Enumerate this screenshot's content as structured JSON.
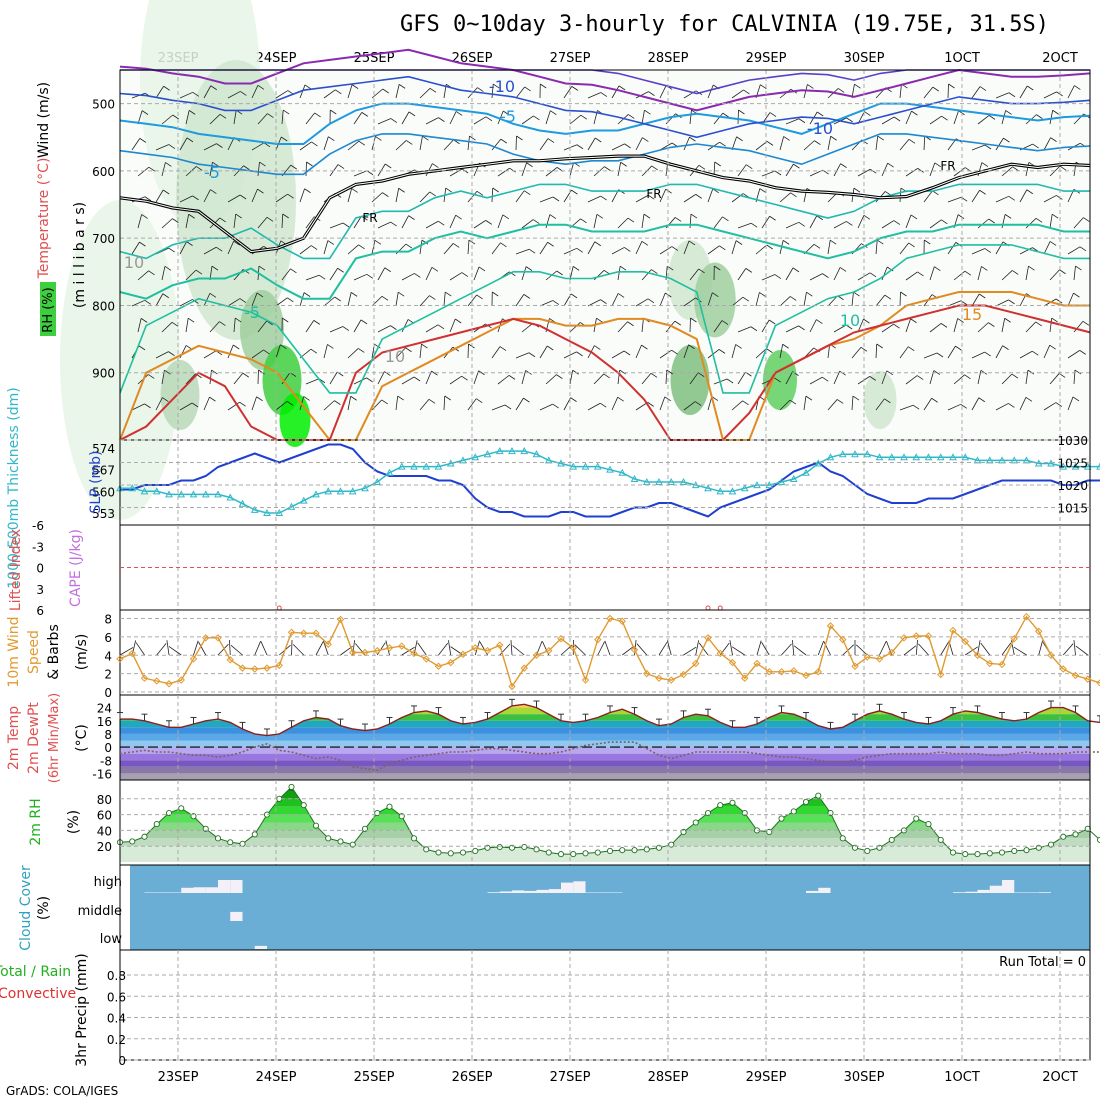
{
  "title": "GFS 0~10day 3-hourly for CALVINIA (19.75E, 31.5S)",
  "credit": "GrADS: COLA/IGES",
  "dates": [
    "23SEP",
    "24SEP",
    "25SEP",
    "26SEP",
    "27SEP",
    "28SEP",
    "29SEP",
    "30SEP",
    "1OCT",
    "2OCT"
  ],
  "colors": {
    "background": "#ffffff",
    "slp": "#1f3fd0",
    "thickness": "#30b8c8",
    "lifted_index": "#e05050",
    "cape": "#c070e0",
    "wind_speed": "#e09a30",
    "dewpoint": "#806060",
    "rh_fill": "#3ecf3e",
    "cloud_bg": "#6aaed6",
    "cloud_fill": "#f4f0f8"
  },
  "panels": {
    "upper": {
      "label_wind": "Wind (m/s)",
      "label_temp": "Temperature (°C)",
      "label_rh": "RH (%)",
      "label_pressure": "(m i l l i b a r s)",
      "ticks": [
        "500",
        "600",
        "700",
        "800",
        "900"
      ],
      "contour_labels": [
        "-10",
        "-5",
        "-10",
        "-5",
        "FR",
        "FR",
        "FR",
        "-5",
        "10",
        "15",
        "10",
        "10"
      ]
    },
    "slp": {
      "label_thick": "1000-500mb Thickness (dm)",
      "label_slp": "SLP (mb)",
      "left_ticks": [
        "574",
        "567",
        "560",
        "553"
      ],
      "right_ticks": [
        "1030",
        "1025",
        "1020",
        "1015"
      ]
    },
    "li": {
      "label_li": "Lifted Index",
      "label_cape": "CAPE (J/kg)",
      "ticks": [
        "-6",
        "-3",
        "0",
        "3",
        "6"
      ]
    },
    "wind": {
      "label_1": "10m Wind",
      "label_2": "Speed",
      "label_3": "& Barbs",
      "label_unit": "(m/s)",
      "ticks": [
        "8",
        "6",
        "4",
        "2",
        "0"
      ]
    },
    "temp": {
      "label_1": "2m Temp",
      "label_2": "2m DewPt",
      "label_3": "(6hr Min/Max)",
      "label_unit": "(°C)",
      "ticks": [
        "24",
        "16",
        "8",
        "0",
        "-8",
        "-16"
      ]
    },
    "rh": {
      "label": "2m RH",
      "label_unit": "(%)",
      "ticks": [
        "80",
        "60",
        "40",
        "20"
      ]
    },
    "cloud": {
      "label": "Cloud Cover",
      "label_unit": "(%)",
      "ticks": [
        "high",
        "middle",
        "low"
      ]
    },
    "precip": {
      "label_left": "Total / Rain",
      "label_conv": "Convective",
      "label_axis": "3hr Precip (mm)",
      "run_total": "Run Total = 0",
      "ticks": [
        "0.8",
        "0.6",
        "0.4",
        "0.2",
        "0"
      ]
    }
  },
  "chart_data": {
    "type": "line",
    "x_start": "2023-09-22T12Z",
    "x_step_hours": 3,
    "slp_mb": [
      1019,
      1019,
      1020,
      1020,
      1020,
      1021,
      1021,
      1022,
      1024,
      1025,
      1026,
      1027,
      1026,
      1025,
      1026,
      1027,
      1028,
      1029,
      1029,
      1028,
      1025,
      1023,
      1022,
      1022,
      1022,
      1022,
      1021,
      1021,
      1020,
      1017,
      1015,
      1014,
      1014,
      1013,
      1013,
      1013,
      1014,
      1014,
      1013,
      1013,
      1013,
      1014,
      1015,
      1015,
      1016,
      1016,
      1015,
      1014,
      1013,
      1015,
      1016,
      1017,
      1018,
      1019,
      1021,
      1023,
      1024,
      1025,
      1023,
      1022,
      1020,
      1018,
      1017,
      1016,
      1016,
      1016,
      1017,
      1017,
      1017,
      1018,
      1019,
      1020,
      1021,
      1021,
      1021,
      1021,
      1021,
      1020,
      1020,
      1021,
      1021
    ],
    "thickness_dm": [
      561,
      561,
      560,
      560,
      559,
      559,
      559,
      559,
      559,
      558,
      556,
      554,
      553,
      553,
      555,
      557,
      559,
      560,
      560,
      560,
      561,
      563,
      566,
      568,
      568,
      568,
      568,
      569,
      570,
      571,
      572,
      573,
      573,
      573,
      572,
      570,
      569,
      568,
      568,
      568,
      567,
      566,
      564,
      563,
      563,
      563,
      563,
      562,
      561,
      560,
      560,
      561,
      562,
      562,
      563,
      564,
      566,
      569,
      571,
      572,
      572,
      572,
      571,
      571,
      571,
      571,
      571,
      571,
      571,
      571,
      570,
      570,
      570,
      570,
      570,
      569,
      569,
      568,
      568,
      568,
      568
    ],
    "lifted_index": [
      null,
      null,
      null,
      null,
      null,
      null,
      null,
      null,
      null,
      null,
      null,
      null,
      null,
      6,
      null,
      null,
      null,
      null,
      null,
      null,
      null,
      null,
      null,
      null,
      null,
      null,
      null,
      null,
      null,
      null,
      null,
      null,
      null,
      null,
      null,
      null,
      null,
      null,
      null,
      null,
      null,
      null,
      null,
      null,
      null,
      null,
      null,
      null,
      6,
      6,
      null,
      null,
      null,
      null,
      null,
      null,
      null,
      null,
      null,
      null,
      null,
      null,
      null,
      null,
      null,
      null,
      null,
      null,
      null,
      null,
      null,
      null,
      null,
      null,
      null,
      null,
      null,
      null,
      null,
      null,
      null
    ],
    "wind_speed_ms": [
      3.6,
      4.2,
      1.5,
      1.2,
      0.9,
      1.3,
      3.6,
      5.9,
      5.9,
      3.5,
      2.6,
      2.5,
      2.6,
      2.9,
      6.5,
      6.4,
      6.4,
      5.2,
      7.9,
      4.3,
      4.3,
      4.5,
      4.8,
      5.0,
      4.2,
      3.6,
      2.8,
      3.2,
      4.1,
      4.8,
      4.5,
      5.1,
      0.6,
      2.6,
      4.0,
      4.5,
      5.8,
      4.8,
      1.3,
      5.7,
      8.0,
      7.7,
      4.6,
      2.0,
      1.5,
      1.3,
      1.9,
      3.1,
      5.9,
      4.2,
      3.2,
      1.5,
      3.1,
      2.2,
      2.2,
      2.3,
      1.8,
      2.2,
      7.2,
      5.7,
      2.8,
      3.8,
      3.6,
      4.3,
      5.9,
      6.1,
      6.1,
      1.9,
      6.7,
      5.5,
      4.0,
      3.1,
      3.0,
      5.8,
      8.2,
      6.6,
      4.0,
      2.5,
      1.8,
      1.4,
      1.0
    ],
    "temp_c": [
      17,
      17,
      16,
      14,
      12,
      12,
      14,
      16,
      17,
      15,
      11,
      8,
      7,
      8,
      12,
      16,
      18,
      17,
      13,
      11,
      10,
      11,
      14,
      18,
      21,
      22,
      20,
      16,
      14,
      15,
      17,
      21,
      25,
      26,
      24,
      20,
      16,
      15,
      16,
      18,
      21,
      23,
      20,
      16,
      13,
      14,
      18,
      20,
      19,
      15,
      12,
      12,
      14,
      18,
      21,
      20,
      17,
      13,
      11,
      12,
      16,
      20,
      22,
      20,
      17,
      15,
      14,
      16,
      20,
      22,
      21,
      19,
      17,
      16,
      17,
      21,
      24,
      24,
      21,
      16,
      15
    ],
    "dewpt_c": [
      -4,
      -3,
      -2,
      -3,
      -3,
      -4,
      -5,
      -5,
      -6,
      -5,
      -3,
      0,
      2,
      -2,
      -3,
      -5,
      -7,
      -6,
      -8,
      -12,
      -13,
      -14,
      -10,
      -8,
      -6,
      -5,
      -4,
      -3,
      -3,
      -2,
      -1,
      -1,
      -2,
      -3,
      -4,
      -4,
      -3,
      -1,
      1,
      2,
      3,
      3,
      3,
      -1,
      -5,
      -7,
      -5,
      -3,
      -3,
      -3,
      -3,
      -3,
      -4,
      -5,
      -6,
      -6,
      -7,
      -8,
      -9,
      -9,
      -8,
      -6,
      -5,
      -4,
      -4,
      -4,
      -4,
      -3,
      -4,
      -4,
      -4,
      -5,
      -5,
      -4,
      -3,
      -4,
      -4,
      -4,
      -3,
      -3,
      -3
    ],
    "rh_pct": [
      25,
      26,
      32,
      48,
      62,
      68,
      58,
      42,
      30,
      25,
      23,
      35,
      60,
      80,
      95,
      72,
      46,
      30,
      26,
      22,
      42,
      62,
      70,
      58,
      30,
      16,
      12,
      11,
      12,
      14,
      18,
      19,
      18,
      19,
      16,
      12,
      10,
      10,
      11,
      12,
      14,
      15,
      15,
      16,
      18,
      22,
      38,
      50,
      62,
      72,
      75,
      62,
      40,
      38,
      55,
      64,
      76,
      84,
      62,
      30,
      18,
      14,
      18,
      28,
      40,
      55,
      48,
      28,
      12,
      10,
      10,
      11,
      12,
      14,
      15,
      18,
      22,
      32,
      35,
      42,
      28
    ],
    "cloud_high_pct": [
      0,
      0,
      2,
      2,
      2,
      20,
      22,
      22,
      50,
      50,
      0,
      0,
      0,
      0,
      0,
      0,
      0,
      0,
      0,
      0,
      0,
      0,
      0,
      0,
      0,
      0,
      0,
      0,
      0,
      0,
      3,
      6,
      10,
      8,
      12,
      15,
      40,
      45,
      2,
      2,
      2,
      0,
      0,
      0,
      0,
      0,
      0,
      0,
      0,
      0,
      0,
      0,
      0,
      0,
      0,
      0,
      8,
      20,
      0,
      0,
      0,
      0,
      0,
      0,
      0,
      0,
      0,
      0,
      3,
      5,
      12,
      28,
      50,
      2,
      2,
      3,
      0,
      0,
      0,
      0,
      0
    ],
    "cloud_mid_pct": [
      0,
      0,
      0,
      0,
      0,
      0,
      0,
      0,
      0,
      35,
      0,
      0,
      0,
      0,
      0,
      0,
      0,
      0,
      0,
      0,
      0,
      0,
      0,
      0,
      0,
      0,
      0,
      0,
      0,
      0,
      0,
      0,
      0,
      0,
      0,
      0,
      0,
      0,
      0,
      0,
      0,
      0,
      0,
      0,
      0,
      0,
      0,
      0,
      0,
      0,
      0,
      0,
      0,
      0,
      0,
      0,
      0,
      0,
      0,
      0,
      0,
      0,
      0,
      0,
      0,
      0,
      0,
      0,
      0,
      0,
      0,
      0,
      0,
      0,
      0,
      0,
      0,
      0,
      0,
      0,
      0
    ],
    "cloud_low_pct": [
      0,
      0,
      0,
      0,
      0,
      0,
      0,
      0,
      0,
      0,
      0,
      12,
      0,
      0,
      0,
      0,
      0,
      0,
      0,
      0,
      0,
      0,
      0,
      0,
      0,
      0,
      0,
      0,
      0,
      0,
      0,
      0,
      0,
      0,
      0,
      0,
      0,
      0,
      0,
      0,
      0,
      0,
      0,
      0,
      0,
      0,
      0,
      0,
      0,
      0,
      0,
      0,
      0,
      0,
      0,
      0,
      0,
      0,
      0,
      0,
      0,
      0,
      0,
      0,
      0,
      0,
      0,
      0,
      0,
      0,
      0,
      0,
      0,
      0,
      0,
      0,
      0,
      0,
      0,
      0,
      0
    ],
    "precip_total_mm": 0,
    "upper_contours": {
      "fr_p": [
        640,
        645,
        655,
        660,
        690,
        720,
        715,
        700,
        640,
        620,
        615,
        605,
        600,
        595,
        590,
        585,
        585,
        582,
        580,
        578,
        578,
        590,
        600,
        610,
        615,
        625,
        630,
        632,
        635,
        640,
        638,
        625,
        610,
        600,
        590,
        595,
        590,
        592
      ],
      "m10_p": [
        445,
        448,
        455,
        460,
        470,
        470,
        455,
        440,
        435,
        430,
        425,
        420,
        430,
        440,
        445,
        450,
        460,
        470,
        472,
        480,
        490,
        500,
        510,
        500,
        490,
        485,
        480,
        482,
        490,
        480,
        470,
        460,
        450,
        455,
        460,
        460,
        458,
        455
      ],
      "m5_p": [
        525,
        530,
        535,
        545,
        550,
        555,
        560,
        560,
        530,
        510,
        500,
        500,
        505,
        510,
        515,
        530,
        540,
        545,
        540,
        540,
        530,
        520,
        515,
        520,
        525,
        535,
        545,
        530,
        515,
        500,
        500,
        505,
        510,
        515,
        520,
        525,
        520,
        518
      ],
      "p5_p": [
        780,
        790,
        770,
        760,
        760,
        745,
        770,
        790,
        790,
        730,
        720,
        720,
        700,
        690,
        700,
        690,
        680,
        680,
        690,
        690,
        690,
        680,
        680,
        690,
        700,
        710,
        720,
        730,
        720,
        700,
        690,
        690,
        680,
        680,
        680,
        680,
        690,
        690
      ],
      "p10_p": [
        1000,
        900,
        880,
        860,
        870,
        880,
        900,
        950,
        1000,
        1000,
        920,
        900,
        880,
        860,
        840,
        820,
        820,
        830,
        830,
        820,
        820,
        830,
        850,
        1000,
        1000,
        900,
        880,
        860,
        850,
        830,
        800,
        790,
        780,
        780,
        780,
        790,
        800,
        800
      ],
      "p15_p": [
        1000,
        980,
        940,
        900,
        920,
        980,
        1000,
        1000,
        1000,
        900,
        870,
        860,
        850,
        840,
        830,
        820,
        830,
        850,
        870,
        900,
        940,
        1000,
        1000,
        1000,
        960,
        900,
        880,
        860,
        840,
        830,
        820,
        810,
        800,
        800,
        810,
        820,
        830,
        840
      ]
    }
  }
}
